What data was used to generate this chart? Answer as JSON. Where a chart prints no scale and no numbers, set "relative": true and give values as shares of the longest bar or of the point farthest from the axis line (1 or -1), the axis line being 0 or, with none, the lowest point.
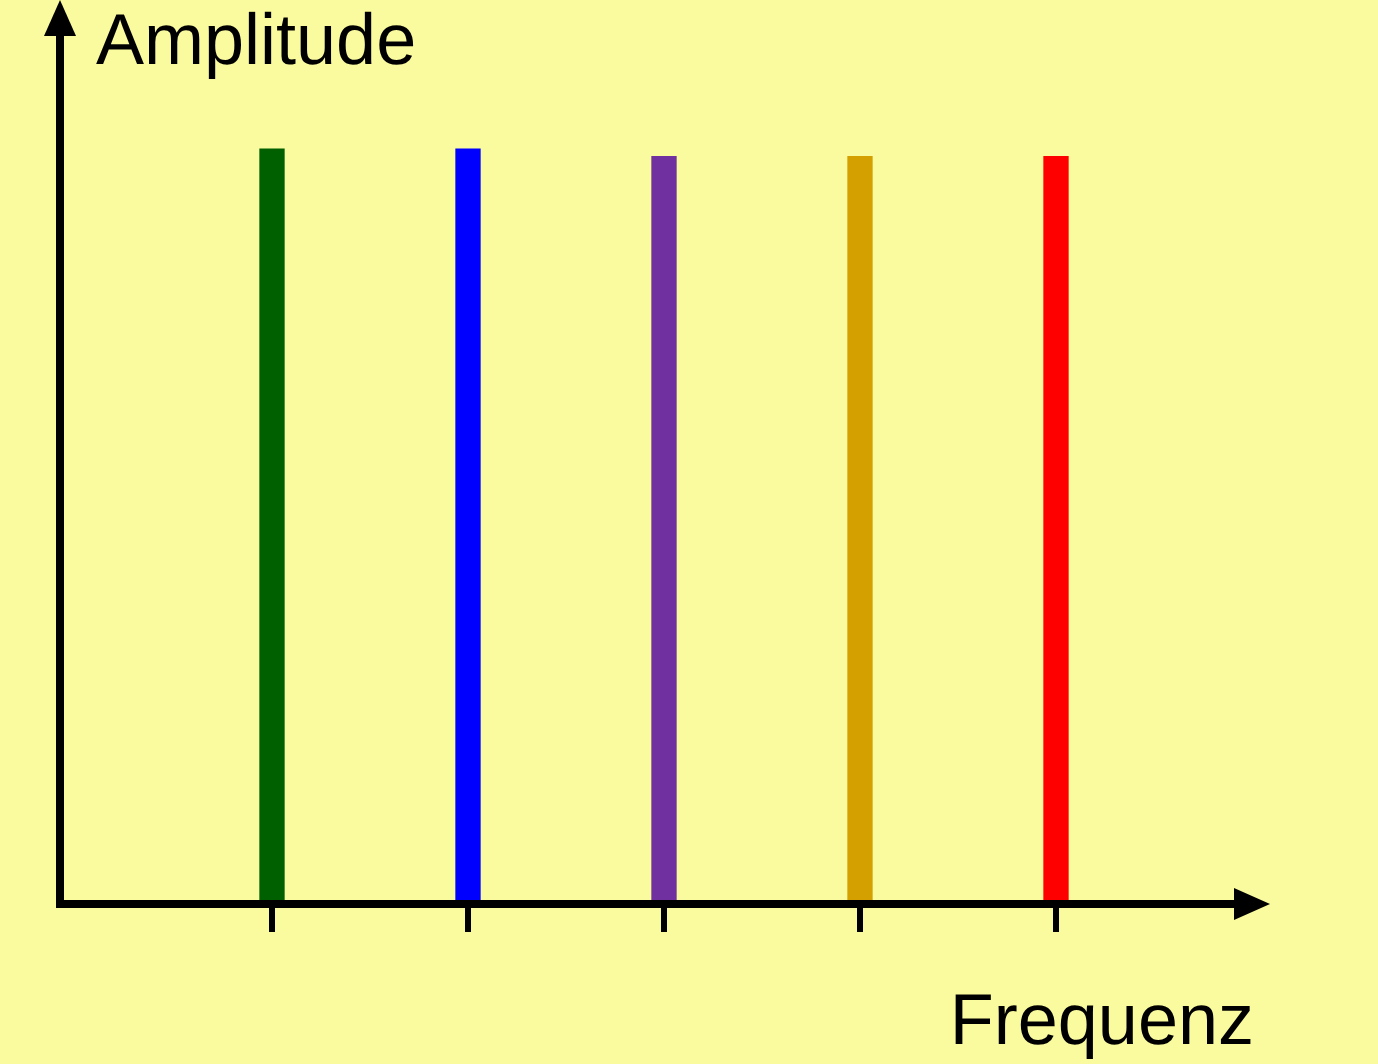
{
  "chart_data": {
    "type": "bar",
    "relative": true,
    "xlabel": "Frequenz",
    "annotations": [
      "Amplitude"
    ],
    "categories": [
      null,
      null,
      null,
      null,
      null
    ],
    "values": [
      1,
      1,
      0.99,
      0.99,
      0.99
    ],
    "colors": [
      "#006000",
      "#0000ff",
      "#7030a0",
      "#d4a000",
      "#ff0000"
    ],
    "legend": false
  }
}
